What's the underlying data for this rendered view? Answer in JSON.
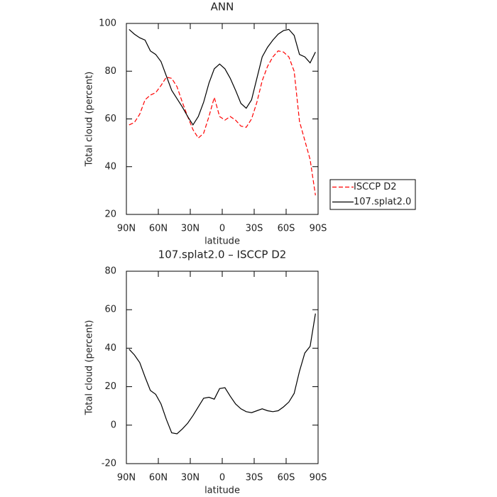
{
  "chart_data": [
    {
      "type": "line",
      "title": "ANN",
      "x_label": "latitude",
      "y_label": "Total cloud (percent)",
      "x": [
        87.5,
        82.5,
        77.5,
        72.5,
        67.5,
        62.5,
        57.5,
        52.5,
        47.5,
        42.5,
        37.5,
        32.5,
        27.5,
        22.5,
        17.5,
        12.5,
        7.5,
        2.5,
        -2.5,
        -7.5,
        -12.5,
        -17.5,
        -22.5,
        -27.5,
        -32.5,
        -37.5,
        -42.5,
        -47.5,
        -52.5,
        -57.5,
        -62.5,
        -67.5,
        -72.5,
        -77.5,
        -82.5,
        -87.5
      ],
      "series": [
        {
          "name": "ISCCP D2",
          "color": "#ff0000",
          "line_style": "dashed",
          "values": [
            57.5,
            58.5,
            62,
            68,
            70,
            71,
            74,
            77.5,
            77,
            73.5,
            67,
            61,
            55.5,
            52,
            54,
            61,
            69,
            61,
            59.5,
            61,
            59.5,
            57,
            56.5,
            60,
            67,
            76,
            82,
            86,
            88.5,
            88,
            86,
            80,
            59,
            51,
            43,
            28
          ]
        },
        {
          "name": "107.splat2.0",
          "color": "#000000",
          "line_style": "solid",
          "values": [
            97.5,
            95.5,
            94,
            93,
            88.5,
            87,
            84,
            78,
            72,
            68.5,
            65,
            61,
            57.5,
            61,
            67,
            75,
            81,
            83,
            81,
            77,
            72,
            66.5,
            64.5,
            68,
            77,
            86,
            90,
            93,
            95.5,
            97,
            97.5,
            95,
            87,
            86,
            83.5,
            88
          ]
        }
      ],
      "xlim": [
        90,
        -90
      ],
      "xticks": [
        {
          "value": 90,
          "label": "90N"
        },
        {
          "value": 60,
          "label": "60N"
        },
        {
          "value": 30,
          "label": "30N"
        },
        0,
        {
          "value": -30,
          "label": "30S"
        },
        {
          "value": -60,
          "label": "60S"
        },
        {
          "value": -90,
          "label": "90S"
        }
      ],
      "ylim": [
        20,
        100
      ],
      "yticks": [
        20,
        40,
        60,
        80,
        100
      ],
      "legend": "right"
    },
    {
      "type": "line",
      "title": "107.splat2.0 – ISCCP D2",
      "x_label": "latitude",
      "y_label": "Total cloud (percent)",
      "x": [
        87.5,
        82.5,
        77.5,
        72.5,
        67.5,
        62.5,
        57.5,
        52.5,
        47.5,
        42.5,
        37.5,
        32.5,
        27.5,
        22.5,
        17.5,
        12.5,
        7.5,
        2.5,
        -2.5,
        -7.5,
        -12.5,
        -17.5,
        -22.5,
        -27.5,
        -32.5,
        -37.5,
        -42.5,
        -47.5,
        -52.5,
        -57.5,
        -62.5,
        -67.5,
        -72.5,
        -77.5,
        -82.5,
        -87.5
      ],
      "values": [
        39.5,
        36.5,
        32.5,
        25,
        18,
        16,
        11,
        3,
        -4,
        -4.5,
        -2,
        1,
        5,
        9.5,
        14,
        14.5,
        13.5,
        19,
        19.5,
        15,
        11,
        8.5,
        7,
        6.5,
        7.5,
        8.5,
        7.5,
        7,
        7.5,
        9.5,
        12,
        16.5,
        28,
        37.5,
        41,
        58
      ],
      "color": "#000000",
      "xlim": [
        90,
        -90
      ],
      "xticks": [
        {
          "value": 90,
          "label": "90N"
        },
        {
          "value": 60,
          "label": "60N"
        },
        {
          "value": 30,
          "label": "30N"
        },
        0,
        {
          "value": -30,
          "label": "30S"
        },
        {
          "value": -60,
          "label": "60S"
        },
        {
          "value": -90,
          "label": "90S"
        }
      ],
      "ylim": [
        -20,
        80
      ],
      "yticks": [
        -20,
        0,
        20,
        40,
        60,
        80
      ]
    }
  ]
}
